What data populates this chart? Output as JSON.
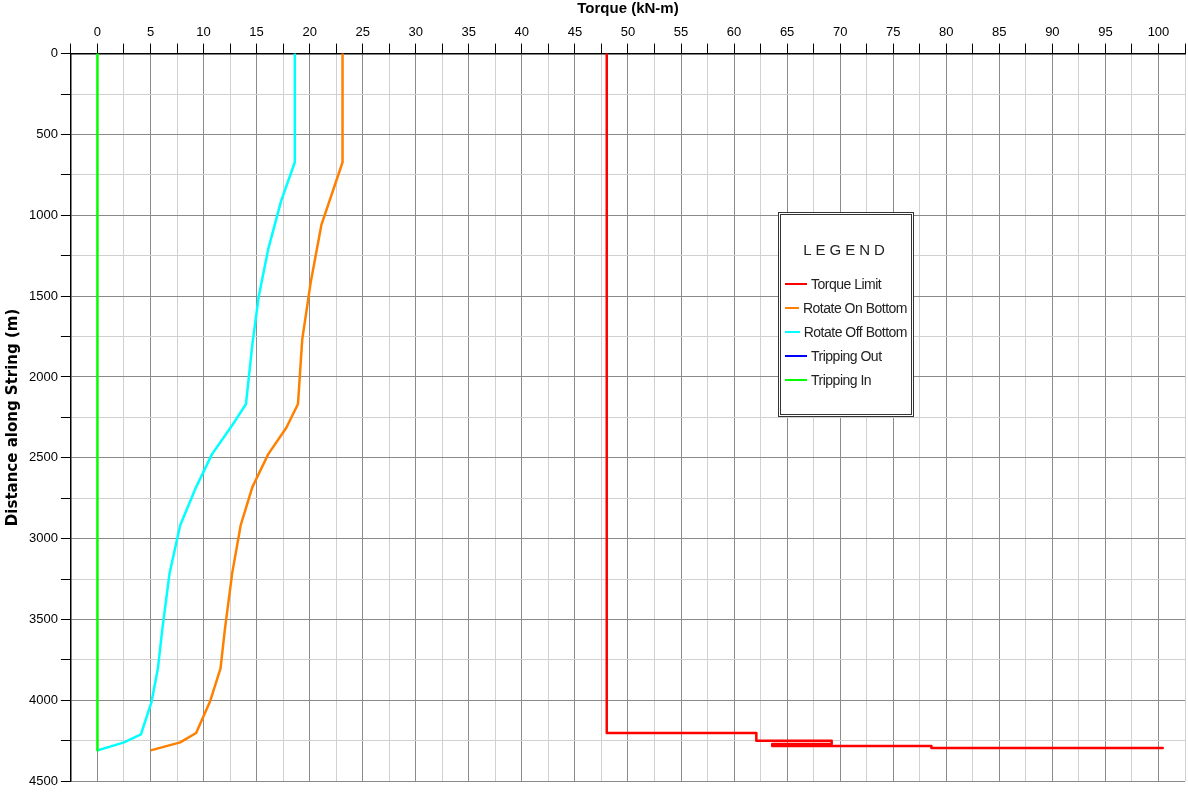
{
  "chart_data": {
    "type": "line",
    "xlabel": "Torque (kN-m)",
    "ylabel": "Distance along String (m)",
    "legend_title": "LEGEND",
    "legend": "right",
    "grid": true,
    "marker": "none",
    "line_style": "solid",
    "xlim": [
      -2.5,
      102.5
    ],
    "ylim": [
      4500,
      0
    ],
    "xticks": [
      {
        "value": -2.5,
        "label": null
      },
      0,
      {
        "value": 2.5,
        "label": null
      },
      5,
      {
        "value": 7.5,
        "label": null
      },
      10,
      {
        "value": 12.5,
        "label": null
      },
      15,
      {
        "value": 17.5,
        "label": null
      },
      20,
      {
        "value": 22.5,
        "label": null
      },
      25,
      {
        "value": 27.5,
        "label": null
      },
      30,
      {
        "value": 32.5,
        "label": null
      },
      35,
      {
        "value": 37.5,
        "label": null
      },
      40,
      {
        "value": 42.5,
        "label": null
      },
      45,
      {
        "value": 47.5,
        "label": null
      },
      50,
      {
        "value": 52.5,
        "label": null
      },
      55,
      {
        "value": 57.5,
        "label": null
      },
      60,
      {
        "value": 62.5,
        "label": null
      },
      65,
      {
        "value": 67.5,
        "label": null
      },
      70,
      {
        "value": 72.5,
        "label": null
      },
      75,
      {
        "value": 77.5,
        "label": null
      },
      80,
      {
        "value": 82.5,
        "label": null
      },
      85,
      {
        "value": 87.5,
        "label": null
      },
      90,
      {
        "value": 92.5,
        "label": null
      },
      95,
      {
        "value": 97.5,
        "label": null
      },
      100,
      {
        "value": 102.5,
        "label": null
      }
    ],
    "yticks": [
      0,
      {
        "value": 250,
        "label": null
      },
      500,
      {
        "value": 750,
        "label": null
      },
      1000,
      {
        "value": 1250,
        "label": null
      },
      1500,
      {
        "value": 1750,
        "label": null
      },
      2000,
      {
        "value": 2250,
        "label": null
      },
      2500,
      {
        "value": 2750,
        "label": null
      },
      3000,
      {
        "value": 3250,
        "label": null
      },
      3500,
      {
        "value": 3750,
        "label": null
      },
      4000,
      {
        "value": 4250,
        "label": null
      },
      4500
    ],
    "series": [
      {
        "name": "Torque Limit",
        "color": "#ff0000",
        "x": [
          48,
          48,
          62.1,
          62.1,
          69.2,
          69.2,
          63.6,
          63.6,
          78.6,
          78.6,
          100.4
        ],
        "values": [
          0,
          4202,
          4202,
          4250,
          4250,
          4270,
          4270,
          4282,
          4282,
          4295,
          4295
        ]
      },
      {
        "name": "Rotate On Bottom",
        "color": "#ff8000",
        "x": [
          23.1,
          23.1,
          21.1,
          20.1,
          19.3,
          18.9,
          17.8,
          16.1,
          14.6,
          13.5,
          12.7,
          12.0,
          11.6,
          10.6,
          9.3,
          7.8,
          5.1
        ],
        "values": [
          0,
          672,
          1061,
          1415,
          1769,
          2167,
          2314,
          2477,
          2681,
          2917,
          3213,
          3567,
          3802,
          4009,
          4202,
          4260,
          4308
        ]
      },
      {
        "name": "Rotate Off Bottom",
        "color": "#00ffff",
        "x": [
          18.6,
          18.6,
          17.3,
          16.1,
          15.2,
          14.6,
          14.0,
          12.7,
          10.8,
          9.3,
          7.8,
          6.8,
          6.1,
          5.7,
          5.1,
          4.1,
          2.5,
          0.1
        ],
        "values": [
          0,
          672,
          914,
          1208,
          1503,
          1798,
          2167,
          2299,
          2477,
          2681,
          2917,
          3213,
          3567,
          3802,
          4009,
          4210,
          4260,
          4308
        ]
      },
      {
        "name": "Tripping Out",
        "color": "#0000ff",
        "values": [
          null
        ]
      },
      {
        "name": "Tripping In",
        "color": "#00ff00",
        "x": [
          0,
          0
        ],
        "values": [
          0,
          4308
        ]
      }
    ]
  }
}
